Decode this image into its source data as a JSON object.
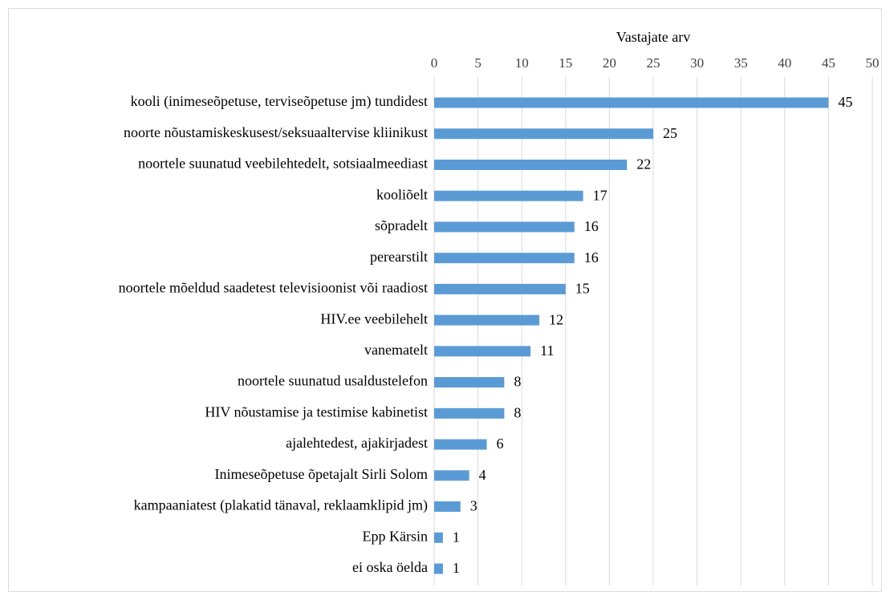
{
  "chart_data": {
    "type": "bar",
    "orientation": "horizontal",
    "x_label": "Vastajate arv",
    "categories": [
      "kooli (inimeseõpetuse, terviseõpetuse jm) tundidest",
      "noorte nõustamiskeskusest/seksuaaltervise kliinikust",
      "noortele suunatud veebilehtedelt, sotsiaalmeediast",
      "kooliõelt",
      "sõpradelt",
      "perearstilt",
      "noortele mõeldud saadetest televisioonist või raadiost",
      "HIV.ee veebilehelt",
      "vanematelt",
      "noortele suunatud usaldustelefon",
      "HIV nõustamise ja testimise kabinetist",
      "ajalehtedest, ajakirjadest",
      "Inimeseõpetuse õpetajalt Sirli Solom",
      "kampaaniatest (plakatid tänaval, reklaamklipid jm)",
      "Epp Kärsin",
      "ei oska öelda"
    ],
    "values": [
      45,
      25,
      22,
      17,
      16,
      16,
      15,
      12,
      11,
      8,
      8,
      6,
      4,
      3,
      1,
      1
    ],
    "color": "#5b9bd5",
    "xlim": [
      0,
      50
    ],
    "xticks": [
      0,
      5,
      10,
      15,
      20,
      25,
      30,
      35,
      40,
      45,
      50
    ],
    "grid": true
  }
}
